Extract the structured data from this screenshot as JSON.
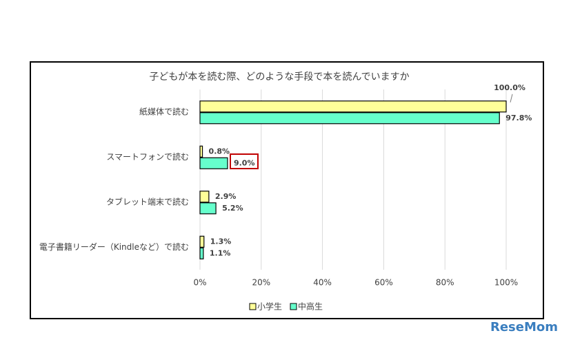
{
  "chart_data": {
    "type": "bar",
    "orientation": "horizontal",
    "title": "子どもが本を読む際、どのような手段で本を読んでいますか",
    "categories": [
      "紙媒体で読む",
      "スマートフォンで読む",
      "タブレット端末で読む",
      "電子書籍リーダー（Kindleなど）で読む"
    ],
    "series": [
      {
        "name": "小学生",
        "color": "#ffff99",
        "values": [
          100.0,
          0.8,
          2.9,
          1.3
        ],
        "value_labels": [
          "100.0%",
          "0.8%",
          "2.9%",
          "1.3%"
        ]
      },
      {
        "name": "中高生",
        "color": "#66ffcc",
        "values": [
          97.8,
          9.0,
          5.2,
          1.1
        ],
        "value_labels": [
          "97.8%",
          "9.0%",
          "5.2%",
          "1.1%"
        ]
      }
    ],
    "xlim": [
      0,
      100
    ],
    "xticks": [
      {
        "value": 0,
        "label": "0%"
      },
      {
        "value": 20,
        "label": "20%"
      },
      {
        "value": 40,
        "label": "40%"
      },
      {
        "value": 60,
        "label": "60%"
      },
      {
        "value": 80,
        "label": "80%"
      },
      {
        "value": 100,
        "label": "100%"
      }
    ],
    "grid": true,
    "legend": "bottom",
    "watermark": "ReseMom"
  }
}
